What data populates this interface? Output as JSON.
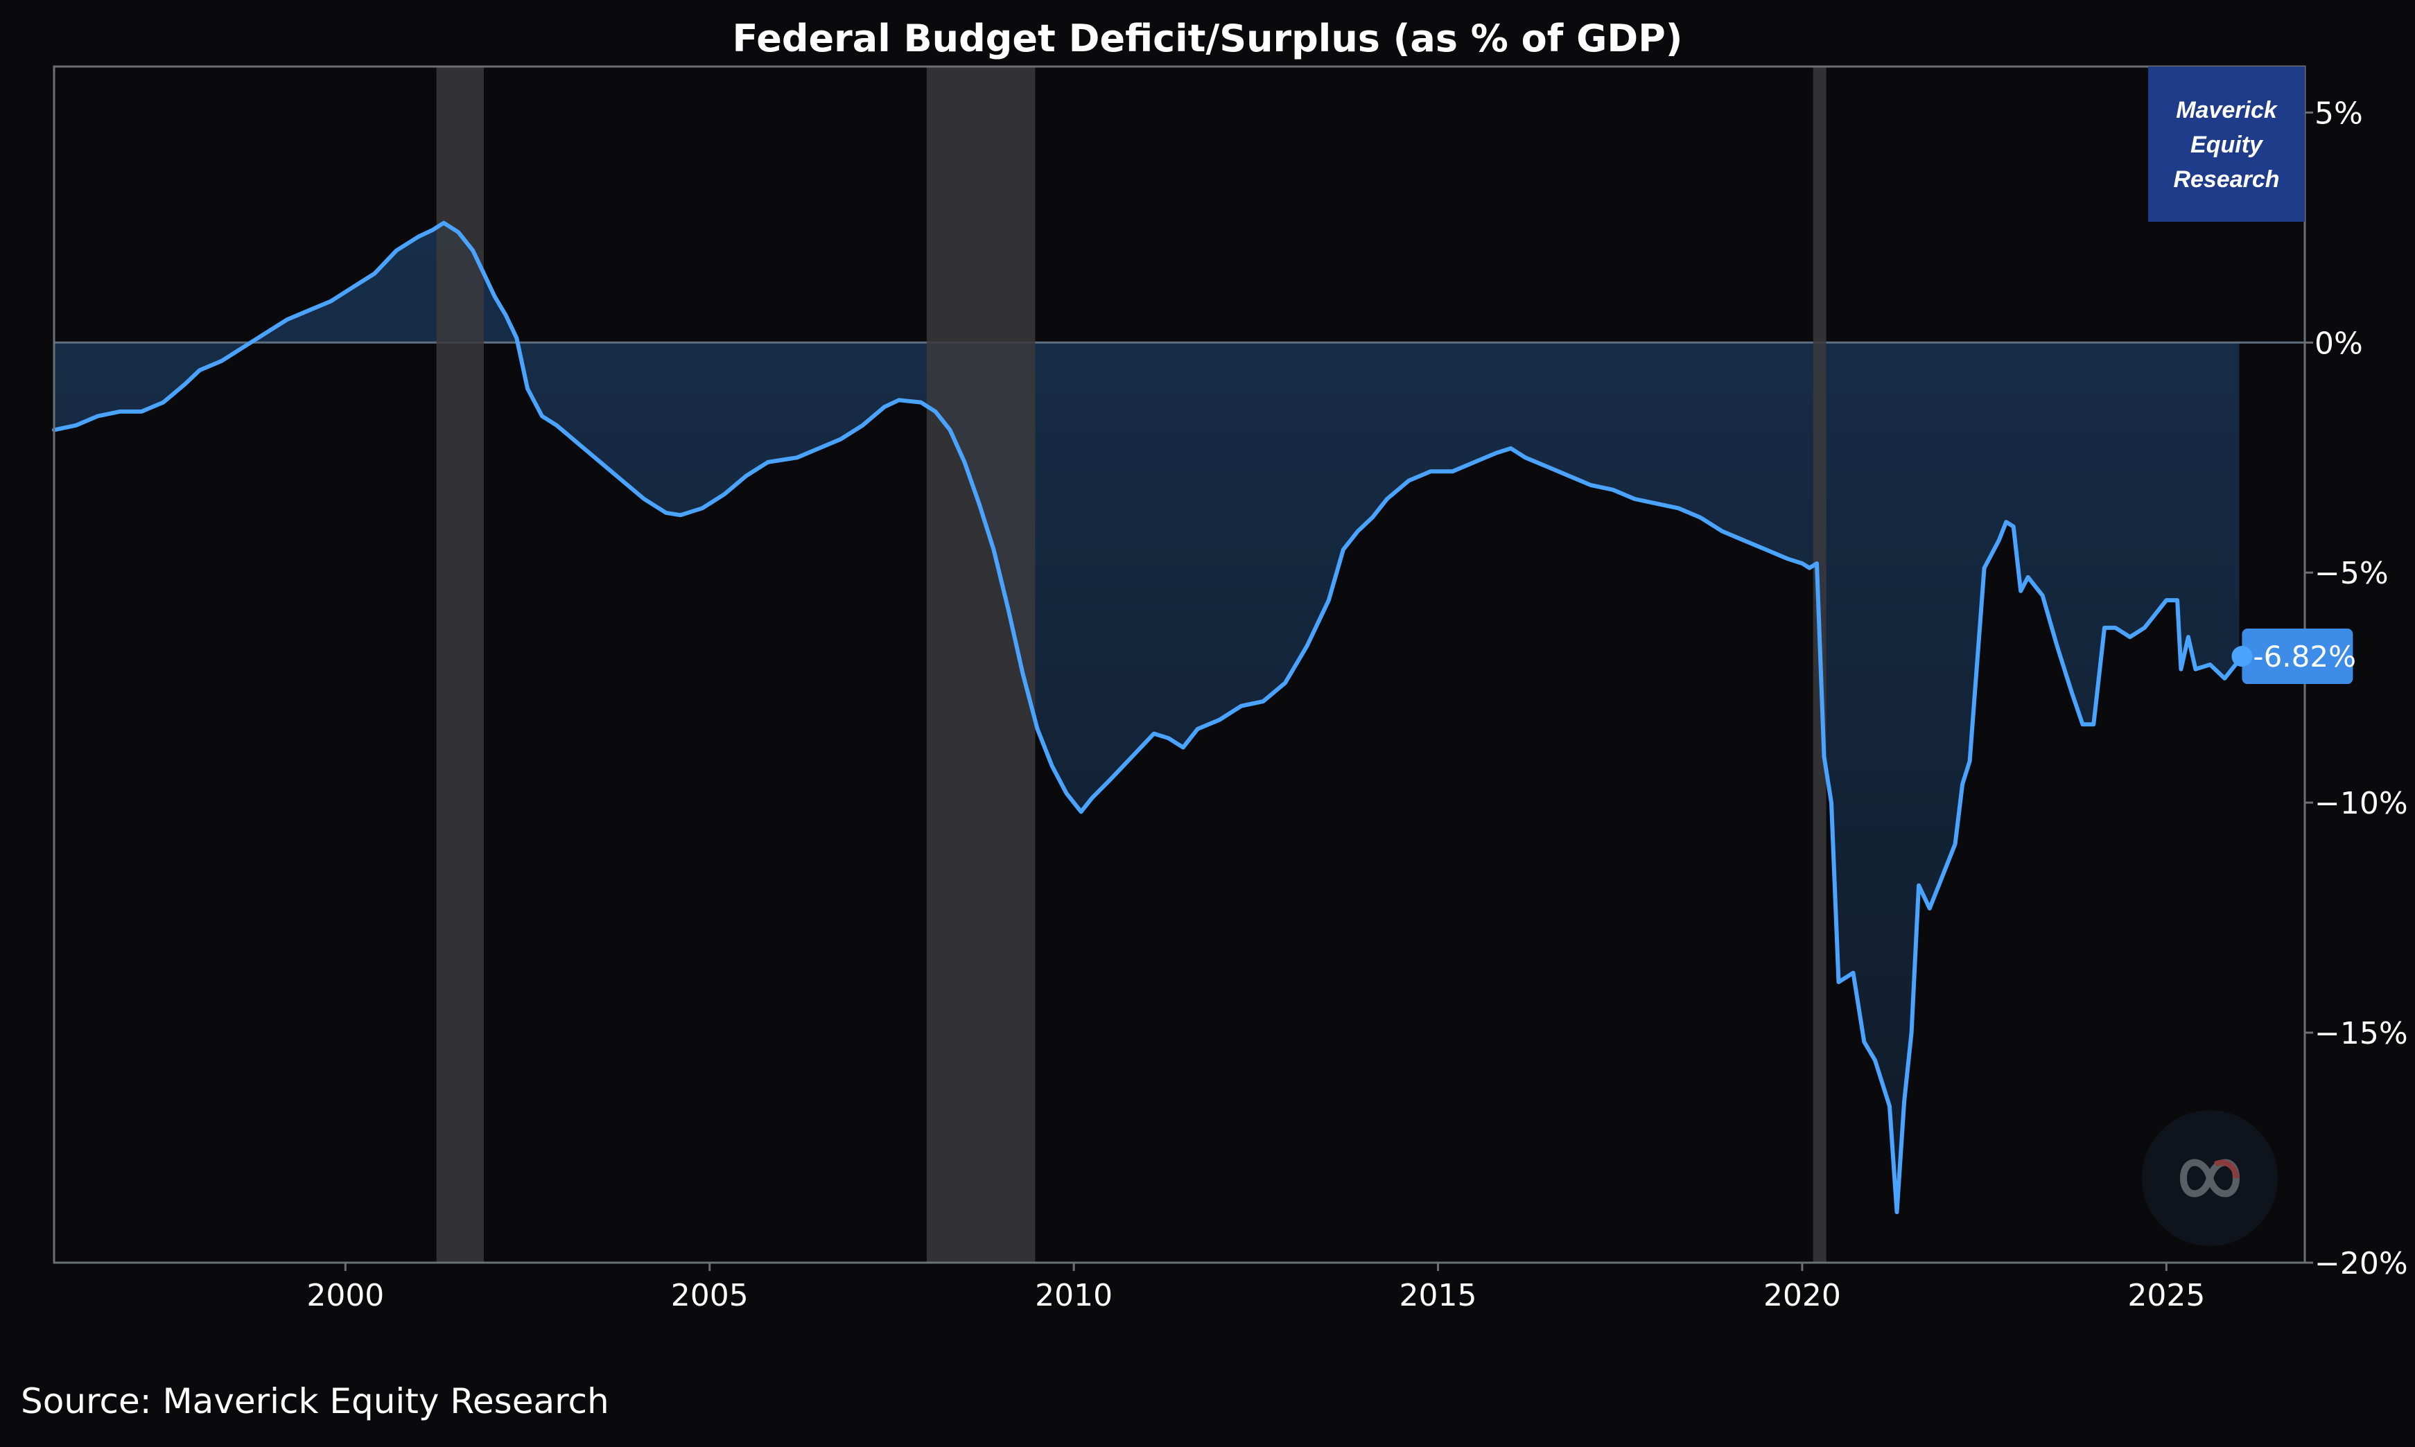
{
  "title": "Federal Budget Deficit/Surplus (as % of GDP)",
  "source": "Source: Maverick Equity Research",
  "badge": {
    "line1": "Maverick",
    "line2": "Equity",
    "line3": "Research"
  },
  "last_value_label": "-6.82%",
  "logo_icon": "infinity-logo-icon",
  "colors": {
    "background": "#0a0a0c",
    "line": "#4aa3ff",
    "fill": "#1b3a5e",
    "recession": "#3a3a3d",
    "badge": "#1f3c8a",
    "last_label": "#3d8ce8",
    "axis": "#6b7076",
    "zero_line": "#5f6f80"
  },
  "chart_data": {
    "type": "line",
    "title": "Federal Budget Deficit/Surplus (as % of GDP)",
    "xlabel": "",
    "ylabel": "",
    "x_range": [
      1996.0,
      2026.9
    ],
    "ylim": [
      -20,
      6
    ],
    "x_ticks": [
      {
        "value": 2000,
        "label": "2000"
      },
      {
        "value": 2005,
        "label": "2005"
      },
      {
        "value": 2010,
        "label": "2010"
      },
      {
        "value": 2015,
        "label": "2015"
      },
      {
        "value": 2020,
        "label": "2020"
      },
      {
        "value": 2025,
        "label": "2025"
      }
    ],
    "y_ticks": [
      {
        "value": 5,
        "label": "5%"
      },
      {
        "value": 0,
        "label": "0%"
      },
      {
        "value": -5,
        "label": "−5%"
      },
      {
        "value": -10,
        "label": "−10%"
      },
      {
        "value": -15,
        "label": "−15%"
      },
      {
        "value": -20,
        "label": "−20%"
      }
    ],
    "grid": false,
    "y_axis_side": "right",
    "recessions": [
      {
        "start": 2001.25,
        "end": 2001.9
      },
      {
        "start": 2007.98,
        "end": 2009.47
      },
      {
        "start": 2020.15,
        "end": 2020.33
      }
    ],
    "last_value": -6.82,
    "series": [
      {
        "points": [
          [
            1996.0,
            -1.9
          ],
          [
            1996.3,
            -1.8
          ],
          [
            1996.6,
            -1.6
          ],
          [
            1996.9,
            -1.5
          ],
          [
            1997.2,
            -1.5
          ],
          [
            1997.5,
            -1.3
          ],
          [
            1997.8,
            -0.9
          ],
          [
            1998.0,
            -0.6
          ],
          [
            1998.3,
            -0.4
          ],
          [
            1998.6,
            -0.1
          ],
          [
            1998.9,
            0.2
          ],
          [
            1999.2,
            0.5
          ],
          [
            1999.5,
            0.7
          ],
          [
            1999.8,
            0.9
          ],
          [
            2000.1,
            1.2
          ],
          [
            2000.4,
            1.5
          ],
          [
            2000.7,
            2.0
          ],
          [
            2001.0,
            2.3
          ],
          [
            2001.2,
            2.45
          ],
          [
            2001.35,
            2.6
          ],
          [
            2001.55,
            2.4
          ],
          [
            2001.75,
            2.0
          ],
          [
            2001.9,
            1.5
          ],
          [
            2002.05,
            1.0
          ],
          [
            2002.2,
            0.6
          ],
          [
            2002.35,
            0.1
          ],
          [
            2002.5,
            -1.0
          ],
          [
            2002.7,
            -1.6
          ],
          [
            2002.9,
            -1.8
          ],
          [
            2003.2,
            -2.2
          ],
          [
            2003.5,
            -2.6
          ],
          [
            2003.8,
            -3.0
          ],
          [
            2004.1,
            -3.4
          ],
          [
            2004.4,
            -3.7
          ],
          [
            2004.6,
            -3.75
          ],
          [
            2004.9,
            -3.6
          ],
          [
            2005.2,
            -3.3
          ],
          [
            2005.5,
            -2.9
          ],
          [
            2005.8,
            -2.6
          ],
          [
            2006.2,
            -2.5
          ],
          [
            2006.5,
            -2.3
          ],
          [
            2006.8,
            -2.1
          ],
          [
            2007.1,
            -1.8
          ],
          [
            2007.4,
            -1.4
          ],
          [
            2007.6,
            -1.25
          ],
          [
            2007.9,
            -1.3
          ],
          [
            2008.1,
            -1.5
          ],
          [
            2008.3,
            -1.9
          ],
          [
            2008.5,
            -2.6
          ],
          [
            2008.7,
            -3.5
          ],
          [
            2008.9,
            -4.5
          ],
          [
            2009.1,
            -5.8
          ],
          [
            2009.3,
            -7.2
          ],
          [
            2009.5,
            -8.4
          ],
          [
            2009.7,
            -9.2
          ],
          [
            2009.9,
            -9.8
          ],
          [
            2010.1,
            -10.2
          ],
          [
            2010.25,
            -9.9
          ],
          [
            2010.5,
            -9.5
          ],
          [
            2010.8,
            -9.0
          ],
          [
            2011.1,
            -8.5
          ],
          [
            2011.3,
            -8.6
          ],
          [
            2011.5,
            -8.8
          ],
          [
            2011.7,
            -8.4
          ],
          [
            2012.0,
            -8.2
          ],
          [
            2012.3,
            -7.9
          ],
          [
            2012.6,
            -7.8
          ],
          [
            2012.9,
            -7.4
          ],
          [
            2013.2,
            -6.6
          ],
          [
            2013.5,
            -5.6
          ],
          [
            2013.7,
            -4.5
          ],
          [
            2013.9,
            -4.1
          ],
          [
            2014.1,
            -3.8
          ],
          [
            2014.3,
            -3.4
          ],
          [
            2014.6,
            -3.0
          ],
          [
            2014.9,
            -2.8
          ],
          [
            2015.2,
            -2.8
          ],
          [
            2015.5,
            -2.6
          ],
          [
            2015.8,
            -2.4
          ],
          [
            2016.0,
            -2.3
          ],
          [
            2016.2,
            -2.5
          ],
          [
            2016.5,
            -2.7
          ],
          [
            2016.8,
            -2.9
          ],
          [
            2017.1,
            -3.1
          ],
          [
            2017.4,
            -3.2
          ],
          [
            2017.7,
            -3.4
          ],
          [
            2018.0,
            -3.5
          ],
          [
            2018.3,
            -3.6
          ],
          [
            2018.6,
            -3.8
          ],
          [
            2018.9,
            -4.1
          ],
          [
            2019.2,
            -4.3
          ],
          [
            2019.5,
            -4.5
          ],
          [
            2019.8,
            -4.7
          ],
          [
            2020.0,
            -4.8
          ],
          [
            2020.1,
            -4.9
          ],
          [
            2020.2,
            -4.8
          ],
          [
            2020.3,
            -9.0
          ],
          [
            2020.4,
            -10.0
          ],
          [
            2020.5,
            -13.9
          ],
          [
            2020.7,
            -13.7
          ],
          [
            2020.85,
            -15.2
          ],
          [
            2021.0,
            -15.6
          ],
          [
            2021.2,
            -16.6
          ],
          [
            2021.3,
            -18.9
          ],
          [
            2021.4,
            -16.5
          ],
          [
            2021.5,
            -15.0
          ],
          [
            2021.6,
            -11.8
          ],
          [
            2021.75,
            -12.3
          ],
          [
            2021.9,
            -11.7
          ],
          [
            2022.1,
            -10.9
          ],
          [
            2022.2,
            -9.6
          ],
          [
            2022.3,
            -9.1
          ],
          [
            2022.4,
            -7.0
          ],
          [
            2022.5,
            -4.9
          ],
          [
            2022.7,
            -4.3
          ],
          [
            2022.8,
            -3.9
          ],
          [
            2022.9,
            -4.0
          ],
          [
            2023.0,
            -5.4
          ],
          [
            2023.1,
            -5.1
          ],
          [
            2023.3,
            -5.5
          ],
          [
            2023.5,
            -6.6
          ],
          [
            2023.7,
            -7.6
          ],
          [
            2023.85,
            -8.3
          ],
          [
            2024.0,
            -8.3
          ],
          [
            2024.15,
            -6.2
          ],
          [
            2024.3,
            -6.2
          ],
          [
            2024.5,
            -6.4
          ],
          [
            2024.7,
            -6.2
          ],
          [
            2024.85,
            -5.9
          ],
          [
            2025.0,
            -5.6
          ],
          [
            2025.15,
            -5.6
          ],
          [
            2025.2,
            -7.1
          ],
          [
            2025.3,
            -6.4
          ],
          [
            2025.4,
            -7.1
          ],
          [
            2025.6,
            -7.0
          ],
          [
            2025.8,
            -7.3
          ],
          [
            2025.95,
            -7.0
          ],
          [
            2026.0,
            -6.82
          ]
        ]
      }
    ]
  }
}
